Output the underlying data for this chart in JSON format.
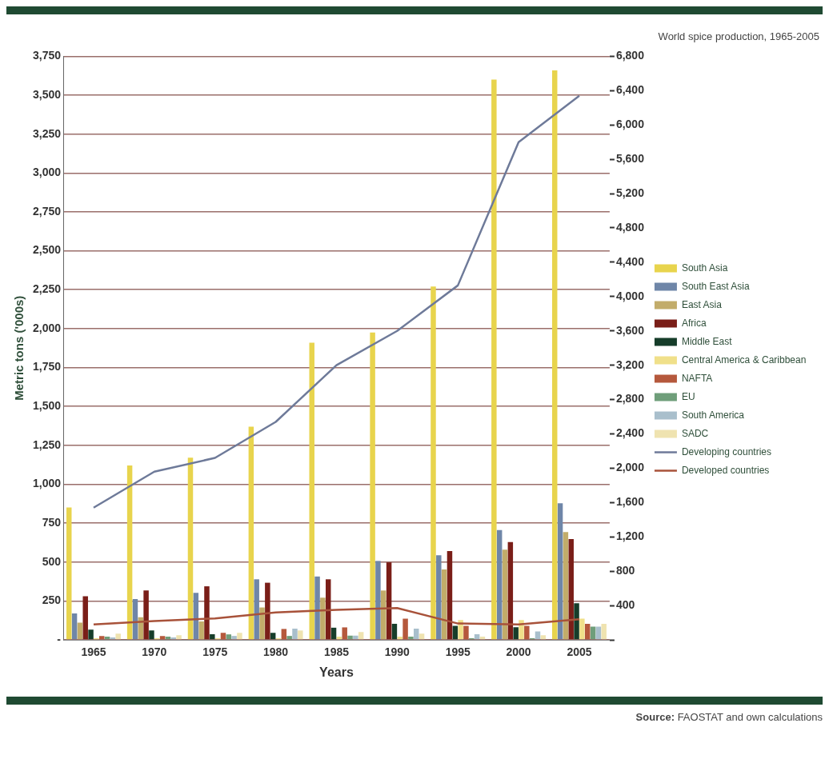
{
  "chart_data": {
    "type": "bar",
    "title": "World spice production, 1965-2005",
    "xlabel": "Years",
    "ylabel": "Metric tons ('000s)",
    "annotations": [
      "Source: FAOSTAT and own calculations"
    ],
    "categories": [
      "1965",
      "1970",
      "1975",
      "1980",
      "1985",
      "1990",
      "1995",
      "2000",
      "2005"
    ],
    "series": [
      {
        "name": "South Asia",
        "color": "#e8d44d",
        "values": [
          850,
          1120,
          1170,
          1370,
          1910,
          1975,
          2270,
          3600,
          3660
        ]
      },
      {
        "name": "South East Asia",
        "color": "#6f86a8",
        "values": [
          170,
          262,
          302,
          389,
          407,
          507,
          543,
          706,
          878
        ]
      },
      {
        "name": "East Asia",
        "color": "#c2ac6a",
        "values": [
          110,
          145,
          118,
          208,
          271,
          317,
          452,
          579,
          693
        ]
      },
      {
        "name": "Africa",
        "color": "#7a1e18",
        "values": [
          280,
          317,
          344,
          367,
          389,
          498,
          570,
          628,
          648
        ]
      },
      {
        "name": "Middle East",
        "color": "#163d2a",
        "values": [
          65,
          60,
          36,
          45,
          78,
          103,
          90,
          81,
          235
        ]
      },
      {
        "name": "Central America & Caribbean",
        "color": "#f0e08a",
        "values": [
          10,
          10,
          10,
          10,
          20,
          20,
          127,
          127,
          136
        ]
      },
      {
        "name": "NAFTA",
        "color": "#b5583c",
        "values": [
          25,
          25,
          45,
          70,
          80,
          136,
          90,
          90,
          103
        ]
      },
      {
        "name": "EU",
        "color": "#6f9e7a",
        "values": [
          20,
          20,
          35,
          25,
          27,
          20,
          10,
          10,
          85
        ]
      },
      {
        "name": "South America",
        "color": "#a9bfcc",
        "values": [
          15,
          15,
          25,
          72,
          27,
          72,
          36,
          54,
          85
        ]
      },
      {
        "name": "SADC",
        "color": "#efe3b0",
        "values": [
          40,
          30,
          45,
          60,
          50,
          40,
          20,
          30,
          103
        ]
      },
      {
        "name": "Developing countries",
        "type": "line",
        "axis": "y2",
        "color": "#6e7a99",
        "values": [
          1540,
          1960,
          2120,
          2540,
          3200,
          3600,
          4130,
          5800,
          6340
        ]
      },
      {
        "name": "Developed countries",
        "type": "line",
        "axis": "y2",
        "color": "#a8523a",
        "values": [
          180,
          220,
          250,
          320,
          350,
          370,
          190,
          180,
          240
        ]
      }
    ],
    "ylim": [
      0,
      3750
    ],
    "yticks": [
      {
        "value": 0,
        "label": "-"
      },
      250,
      500,
      750,
      {
        "value": 1000,
        "label": "1,000"
      },
      {
        "value": 1250,
        "label": "1,250"
      },
      {
        "value": 1500,
        "label": "1,500"
      },
      {
        "value": 1750,
        "label": "1,750"
      },
      {
        "value": 2000,
        "label": "2,000"
      },
      {
        "value": 2250,
        "label": "2,250"
      },
      {
        "value": 2500,
        "label": "2,500"
      },
      {
        "value": 2750,
        "label": "2,750"
      },
      {
        "value": 3000,
        "label": "3,000"
      },
      {
        "value": 3250,
        "label": "3,250"
      },
      {
        "value": 3500,
        "label": "3,500"
      },
      {
        "value": 3750,
        "label": "3,750"
      }
    ],
    "y2lim": [
      0,
      6800
    ],
    "y2ticks": [
      {
        "value": 0,
        "label": null
      },
      400,
      800,
      {
        "value": 1200,
        "label": "1,200"
      },
      {
        "value": 1600,
        "label": "1,600"
      },
      {
        "value": 2000,
        "label": "2,000"
      },
      {
        "value": 2400,
        "label": "2,400"
      },
      {
        "value": 2800,
        "label": "2,800"
      },
      {
        "value": 3200,
        "label": "3,200"
      },
      {
        "value": 3600,
        "label": "3,600"
      },
      {
        "value": 4000,
        "label": "4,000"
      },
      {
        "value": 4400,
        "label": "4,400"
      },
      {
        "value": 4800,
        "label": "4,800"
      },
      {
        "value": 5200,
        "label": "5,200"
      },
      {
        "value": 5600,
        "label": "5,600"
      },
      {
        "value": 6000,
        "label": "6,000"
      },
      {
        "value": 6400,
        "label": "6,400"
      },
      {
        "value": 6800,
        "label": "6,800"
      }
    ],
    "grid": "y",
    "legend": "right",
    "marker": "none",
    "line_style": "solid"
  }
}
